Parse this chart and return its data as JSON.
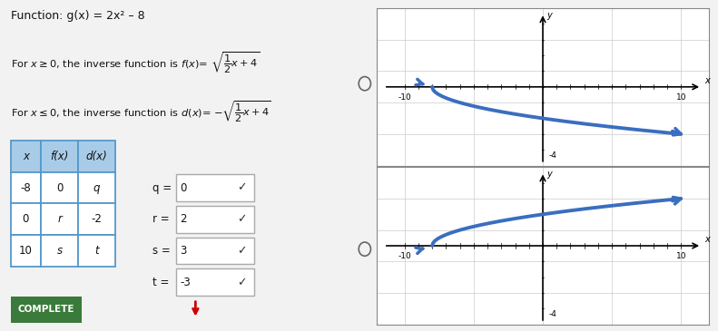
{
  "title_text": "Function: g(x) = 2x² – 8",
  "table_headers": [
    "x",
    "f(x)",
    "d(x)"
  ],
  "table_data": [
    [
      "-8",
      "0",
      "q"
    ],
    [
      "0",
      "r",
      "-2"
    ],
    [
      "10",
      "s",
      "t"
    ]
  ],
  "q_val": "0",
  "r_val": "2",
  "s_val": "3",
  "t_val": "-3",
  "complete_label": "COMPLETE",
  "curve_color": "#3a6ebf",
  "grid_color": "#cccccc",
  "table_header_color": "#a8cce8",
  "table_border_color": "#5599cc",
  "complete_bg": "#3a7a3a",
  "complete_text": "#ffffff",
  "bg_color": "#f2f2f2"
}
